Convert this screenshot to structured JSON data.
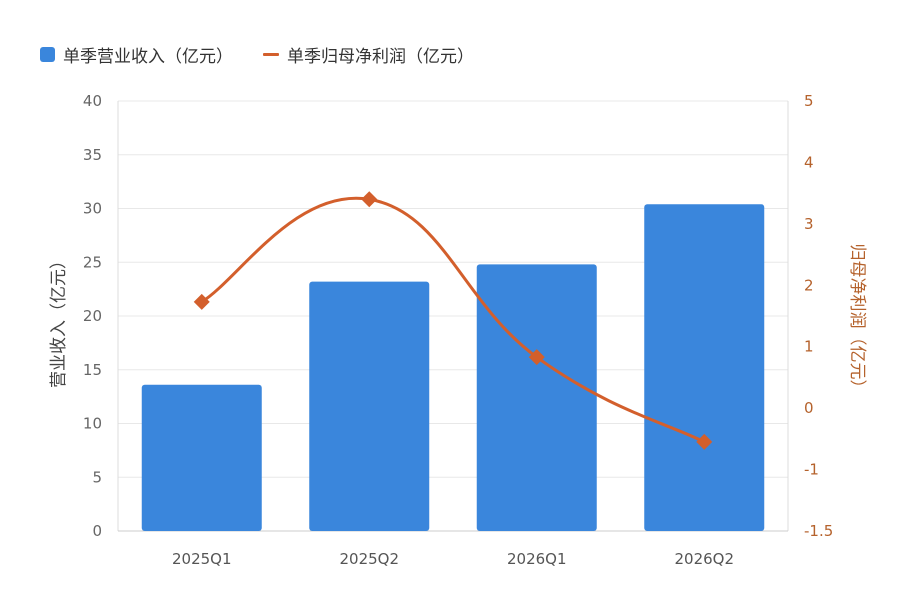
{
  "legend": {
    "bar_label": "单季营业收入（亿元）",
    "line_label": "单季归母净利润（亿元）"
  },
  "colors": {
    "bar": "#3a86dc",
    "line": "#d35f2c",
    "left_tick": "#666666",
    "right_tick": "#b5622c",
    "grid": "#e8e8e8"
  },
  "chart_data": {
    "type": "bar",
    "categories": [
      "2025Q1",
      "2025Q2",
      "2026Q1",
      "2026Q2"
    ],
    "series": [
      {
        "name": "单季营业收入（亿元）",
        "type": "bar",
        "axis": "left",
        "values": [
          13.6,
          23.2,
          24.8,
          30.4
        ]
      },
      {
        "name": "单季归母净利润（亿元）",
        "type": "line",
        "axis": "right",
        "values": [
          1.73,
          3.4,
          0.83,
          -0.55
        ]
      }
    ],
    "ylabel": "营业收入（亿元）",
    "ylabel_right": "归母净利润（亿元）",
    "ylim": [
      0,
      40
    ],
    "ylim_right": [
      -1.5,
      5
    ],
    "yticks": [
      "0",
      "5",
      "10",
      "15",
      "20",
      "25",
      "30",
      "35",
      "40"
    ],
    "yticks_right": [
      "-1.5",
      "-1",
      "0",
      "1",
      "2",
      "3",
      "4",
      "5"
    ],
    "grid": true,
    "legend_position": "top-left"
  }
}
